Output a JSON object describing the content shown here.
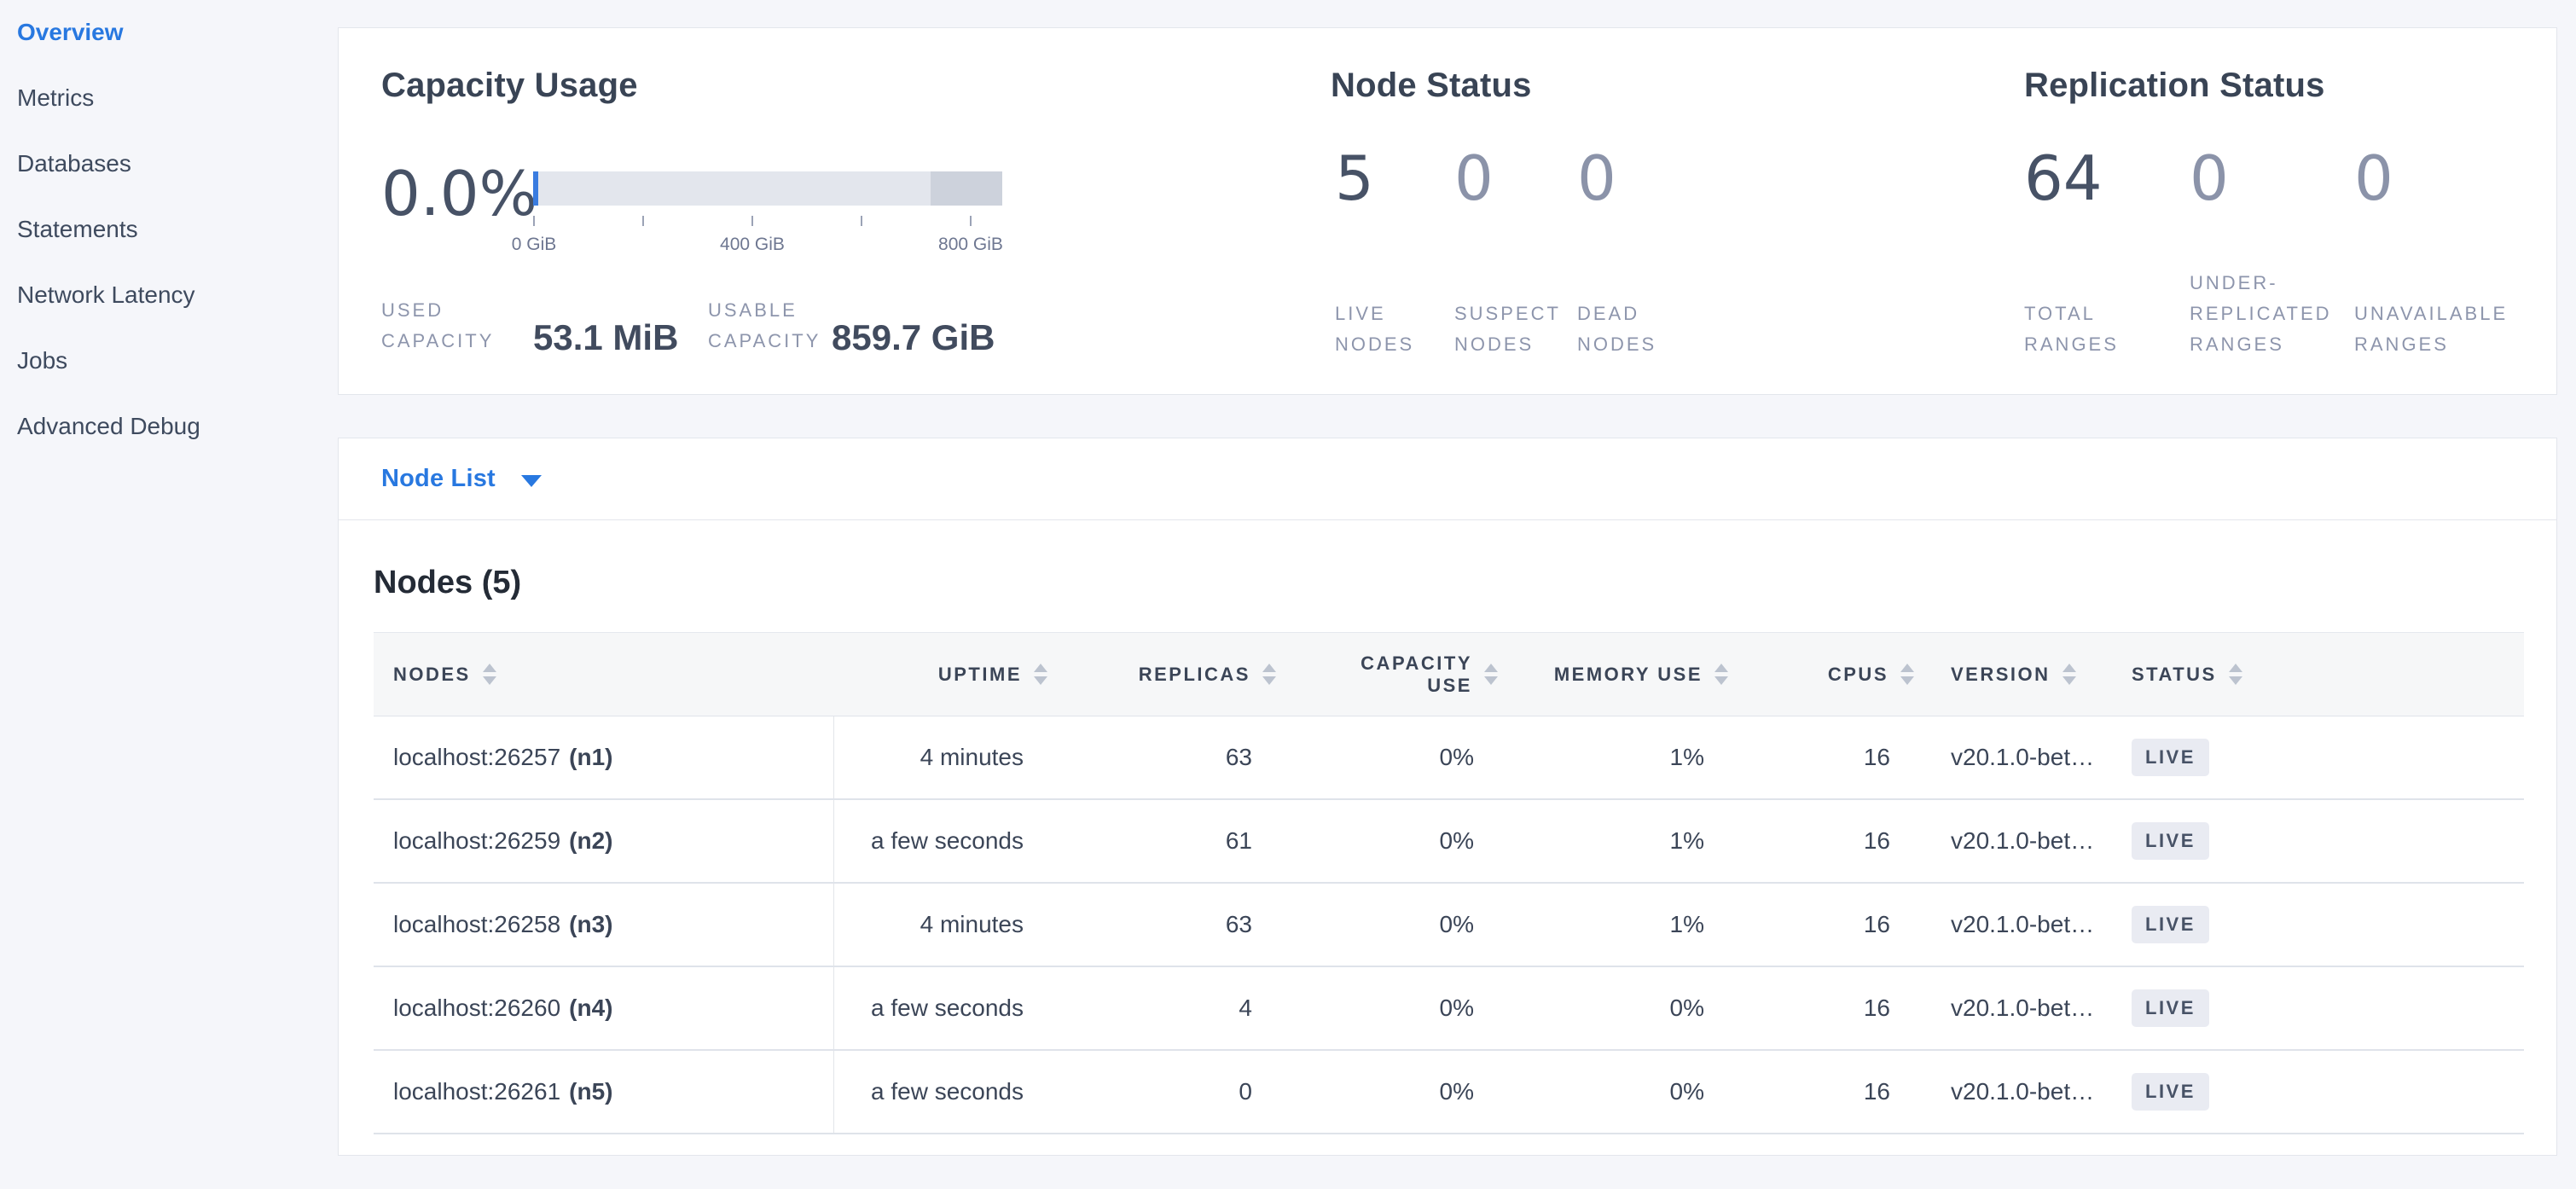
{
  "sidebar": {
    "items": [
      {
        "label": "Overview",
        "active": true
      },
      {
        "label": "Metrics",
        "active": false
      },
      {
        "label": "Databases",
        "active": false
      },
      {
        "label": "Statements",
        "active": false
      },
      {
        "label": "Network Latency",
        "active": false
      },
      {
        "label": "Jobs",
        "active": false
      },
      {
        "label": "Advanced Debug",
        "active": false
      }
    ]
  },
  "summary": {
    "capacity": {
      "title": "Capacity Usage",
      "percent": "0.0%",
      "used_label": [
        "USED",
        "CAPACITY"
      ],
      "used_value": "53.1 MiB",
      "usable_label": [
        "USABLE",
        "CAPACITY"
      ],
      "usable_value": "859.7 GiB",
      "axis_ticks": [
        "0 GiB",
        "400 GiB",
        "800 GiB"
      ]
    },
    "node_status": {
      "title": "Node Status",
      "metrics": [
        {
          "value": "5",
          "label": [
            "LIVE",
            "NODES"
          ]
        },
        {
          "value": "0",
          "label": [
            "SUSPECT",
            "NODES"
          ]
        },
        {
          "value": "0",
          "label": [
            "DEAD",
            "NODES"
          ]
        }
      ]
    },
    "replication": {
      "title": "Replication Status",
      "metrics": [
        {
          "value": "64",
          "label": [
            "TOTAL",
            "RANGES"
          ]
        },
        {
          "value": "0",
          "label": [
            "UNDER-",
            "REPLICATED",
            "RANGES"
          ]
        },
        {
          "value": "0",
          "label": [
            "UNAVAILABLE",
            "RANGES"
          ]
        }
      ]
    }
  },
  "node_list": {
    "dropdown_label": "Node List",
    "heading": "Nodes (5)"
  },
  "table": {
    "columns": {
      "nodes": "NODES",
      "uptime": "UPTIME",
      "replicas": "REPLICAS",
      "capacity_use": [
        "CAPACITY",
        "USE"
      ],
      "memory_use": "MEMORY USE",
      "cpus": "CPUS",
      "version": "VERSION",
      "status": "STATUS"
    },
    "rows": [
      {
        "address": "localhost:26257",
        "node_id": "(n1)",
        "uptime": "4 minutes",
        "replicas": "63",
        "capacity_use": "0%",
        "memory_use": "1%",
        "cpus": "16",
        "version": "v20.1.0-bet…",
        "status": "LIVE"
      },
      {
        "address": "localhost:26259",
        "node_id": "(n2)",
        "uptime": "a few seconds",
        "replicas": "61",
        "capacity_use": "0%",
        "memory_use": "1%",
        "cpus": "16",
        "version": "v20.1.0-bet…",
        "status": "LIVE"
      },
      {
        "address": "localhost:26258",
        "node_id": "(n3)",
        "uptime": "4 minutes",
        "replicas": "63",
        "capacity_use": "0%",
        "memory_use": "1%",
        "cpus": "16",
        "version": "v20.1.0-bet…",
        "status": "LIVE"
      },
      {
        "address": "localhost:26260",
        "node_id": "(n4)",
        "uptime": "a few seconds",
        "replicas": "4",
        "capacity_use": "0%",
        "memory_use": "0%",
        "cpus": "16",
        "version": "v20.1.0-bet…",
        "status": "LIVE"
      },
      {
        "address": "localhost:26261",
        "node_id": "(n5)",
        "uptime": "a few seconds",
        "replicas": "0",
        "capacity_use": "0%",
        "memory_use": "0%",
        "cpus": "16",
        "version": "v20.1.0-bet…",
        "status": "LIVE"
      }
    ]
  },
  "colors": {
    "accent_blue": "#2878e0",
    "bar_fill_light": "#e3e6ed",
    "bar_fill_dark": "#cdd2dc",
    "bar_used_blue": "#3a7ce0",
    "badge_bg": "#e9ebf2"
  }
}
